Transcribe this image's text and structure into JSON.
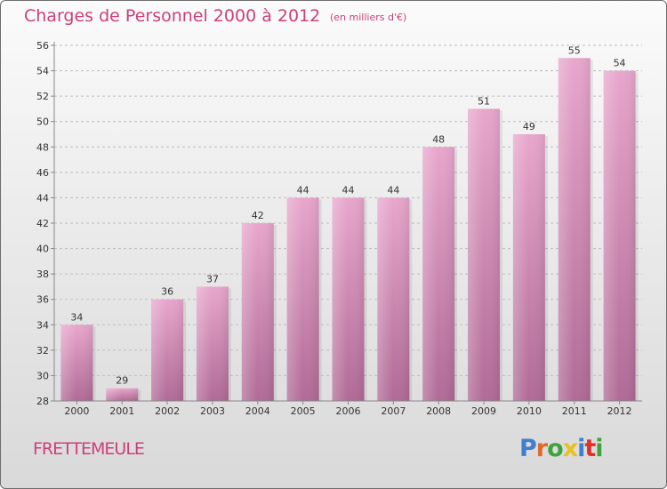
{
  "chart": {
    "title": "Charges de Personnel 2000 à 2012",
    "subtitle": "(en milliers d'€)",
    "place": "FRETTEMEULE"
  },
  "logo": {
    "text": "Proxiti",
    "letter_colors": [
      "#3f7fd0",
      "#e06a2a",
      "#3da33d",
      "#e8c21a",
      "#3f7fd0",
      "#e0302a",
      "#3da33d"
    ]
  },
  "colors": {
    "accent": "#cc4078",
    "bar_top": "#e8a6cc",
    "bar_bottom": "#b06a96"
  },
  "chart_data": {
    "type": "bar",
    "title": "Charges de Personnel 2000 à 2012",
    "subtitle": "(en milliers d'€)",
    "categories": [
      "2000",
      "2001",
      "2002",
      "2003",
      "2004",
      "2005",
      "2006",
      "2007",
      "2008",
      "2009",
      "2010",
      "2011",
      "2012"
    ],
    "values": [
      34,
      29,
      36,
      37,
      42,
      44,
      44,
      44,
      48,
      51,
      49,
      55,
      54
    ],
    "ylim": [
      28,
      56
    ],
    "yticks": [
      28,
      30,
      32,
      34,
      36,
      38,
      40,
      42,
      44,
      46,
      48,
      50,
      52,
      54,
      56
    ],
    "grid": "horizontal dashed"
  }
}
